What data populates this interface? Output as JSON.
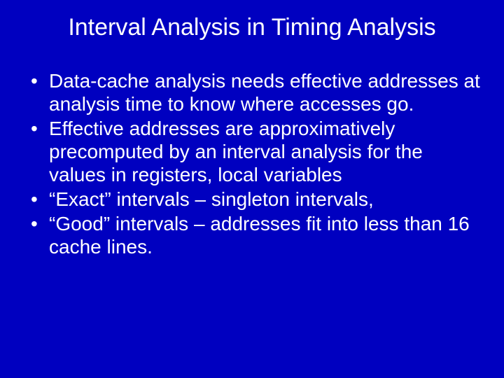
{
  "slide": {
    "background_color": "#0000c0",
    "text_color": "#ffffff",
    "font_family": "Comic Sans MS",
    "title": "Interval Analysis in Timing Analysis",
    "title_fontsize": 34,
    "body_fontsize": 28,
    "bullets": [
      "Data-cache analysis needs effective addresses at analysis time to know where accesses go.",
      "Effective addresses are approximatively precomputed by an interval analysis for the values in registers, local variables",
      "“Exact” intervals – singleton intervals,",
      "“Good” intervals – addresses fit into less than 16 cache lines."
    ]
  }
}
